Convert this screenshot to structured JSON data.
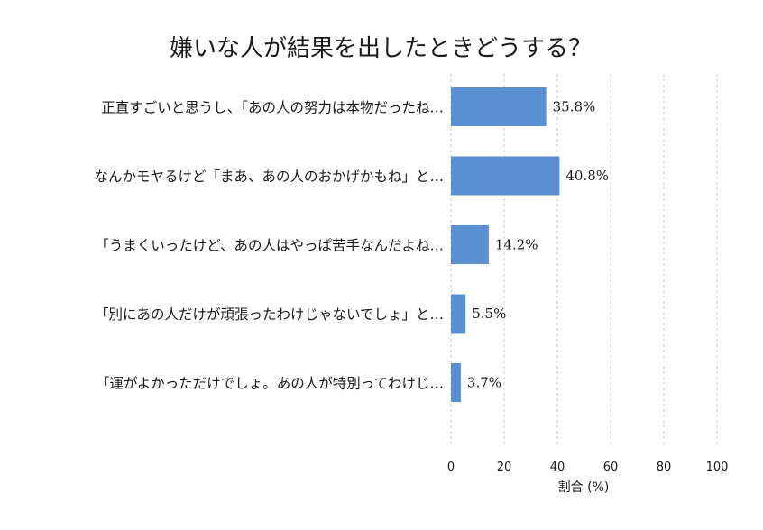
{
  "chart_data": {
    "type": "bar",
    "orientation": "horizontal",
    "title": "嫌いな人が結果を出したときどうする？",
    "xlabel": "割合 (%)",
    "ylabel": "",
    "xlim": [
      0,
      100
    ],
    "xticks": [
      0,
      20,
      40,
      60,
      80,
      100
    ],
    "grid": "vertical-dashed",
    "bar_color": "#5b8fd2",
    "categories": [
      "正直すごいと思うし、「あの人の努力は本物だったね…",
      "なんかモヤるけど「まあ、あの人のおかげかもね」と…",
      "「うまくいったけど、あの人はやっぱ苦手なんだよね…",
      "「別にあの人だけが頑張ったわけじゃないでしょ」と…",
      "「運がよかっただけでしょ。あの人が特別ってわけじ…"
    ],
    "values": [
      35.8,
      40.8,
      14.2,
      5.5,
      3.7
    ],
    "value_labels": [
      "35.8%",
      "40.8%",
      "14.2%",
      "5.5%",
      "3.7%"
    ]
  }
}
